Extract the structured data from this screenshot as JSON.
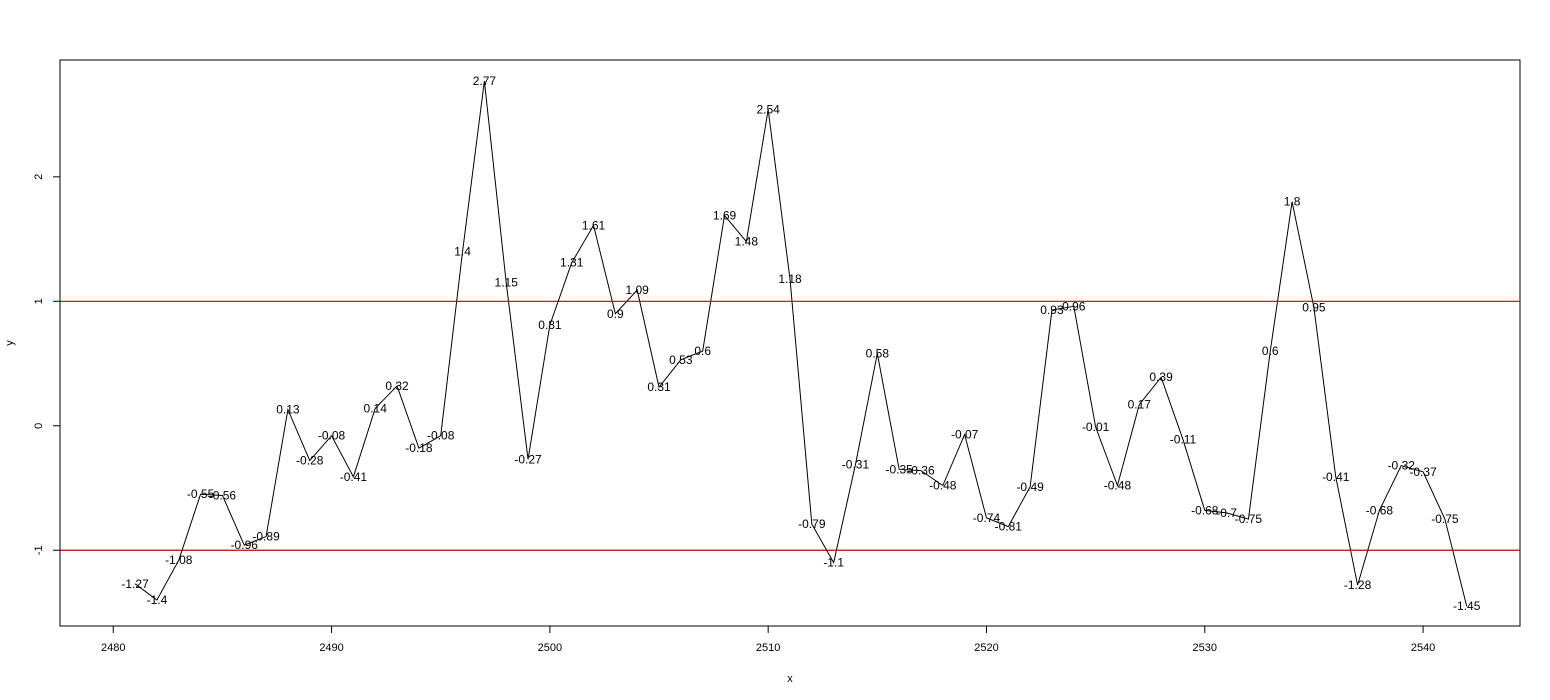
{
  "chart_data": {
    "type": "line",
    "title": "",
    "xlabel": "x",
    "ylabel": "y",
    "xlim": [
      2477.56,
      2544.44
    ],
    "ylim": [
      -1.6088,
      2.9388
    ],
    "xticks": [
      2480,
      2490,
      2500,
      2510,
      2520,
      2530,
      2540
    ],
    "yticks": [
      -1,
      0,
      1,
      2
    ],
    "x": [
      2481,
      2482,
      2483,
      2484,
      2485,
      2486,
      2487,
      2488,
      2489,
      2490,
      2491,
      2492,
      2493,
      2494,
      2495,
      2496,
      2497,
      2498,
      2499,
      2500,
      2501,
      2502,
      2503,
      2504,
      2505,
      2506,
      2507,
      2508,
      2509,
      2510,
      2511,
      2512,
      2513,
      2514,
      2515,
      2516,
      2517,
      2518,
      2519,
      2520,
      2521,
      2522,
      2523,
      2524,
      2525,
      2526,
      2527,
      2528,
      2529,
      2530,
      2531,
      2532,
      2533,
      2534,
      2535,
      2536,
      2537,
      2538,
      2539,
      2540,
      2541,
      2542
    ],
    "y": [
      -1.27,
      -1.4,
      -1.08,
      -0.55,
      -0.56,
      -0.96,
      -0.89,
      0.13,
      -0.28,
      -0.08,
      -0.41,
      0.14,
      0.32,
      -0.18,
      -0.08,
      1.4,
      2.77,
      1.15,
      -0.27,
      0.81,
      1.31,
      1.61,
      0.9,
      1.09,
      0.31,
      0.53,
      0.6,
      1.69,
      1.48,
      2.54,
      1.18,
      -0.79,
      -1.1,
      -0.31,
      0.58,
      -0.35,
      -0.36,
      -0.48,
      -0.07,
      -0.74,
      -0.81,
      -0.49,
      0.93,
      0.96,
      -0.01,
      -0.48,
      0.17,
      0.39,
      -0.11,
      -0.68,
      -0.7,
      -0.75,
      0.6,
      1.8,
      0.95,
      -0.41,
      -1.28,
      -0.68,
      -0.32,
      -0.37,
      -0.75,
      -1.45
    ],
    "labels": [
      "-1.27",
      "-1.4",
      "-1.08",
      "-0.55",
      "-0.56",
      "-0.96",
      "-0.89",
      "0.13",
      "-0.28",
      "-0.08",
      "-0.41",
      "0.14",
      "0.32",
      "-0.18",
      "-0.08",
      "1.4",
      "2.77",
      "1.15",
      "-0.27",
      "0.81",
      "1.31",
      "1.61",
      "0.9",
      "1.09",
      "0.31",
      "0.53",
      "0.6",
      "1.69",
      "1.48",
      "2.54",
      "1.18",
      "-0.79",
      "-1.1",
      "-0.31",
      "0.58",
      "-0.35",
      "-0.36",
      "-0.48",
      "-0.07",
      "-0.74",
      "-0.81",
      "-0.49",
      "0.93",
      "0.96",
      "-0.01",
      "-0.48",
      "0.17",
      "0.39",
      "-0.11",
      "-0.68",
      "-0.7",
      "-0.75",
      "0.6",
      "1.8",
      "0.95",
      "-0.41",
      "-1.28",
      "-0.68",
      "-0.32",
      "-0.37",
      "-0.75",
      "-1.45"
    ],
    "reference_lines": [
      {
        "y": 1,
        "color": "#cc0000"
      },
      {
        "y": -1,
        "color": "#cc0000"
      }
    ],
    "line_color": "#000000",
    "grid": false,
    "legend": "none"
  }
}
